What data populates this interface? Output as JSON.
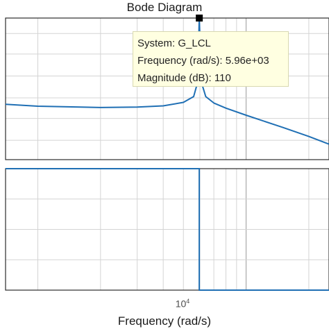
{
  "chart_data": [
    {
      "type": "line",
      "panel": "magnitude",
      "title": "Bode Diagram",
      "xscale": "log",
      "xlim": [
        700,
        25000
      ],
      "ylim": [
        0,
        110
      ],
      "ylabel": "",
      "grid": true,
      "line_color": "#1f6fb4",
      "series": [
        {
          "x": [
            700,
            1000,
            2000,
            3000,
            4000,
            5000,
            5600,
            5850,
            5960,
            6100,
            6400,
            7000,
            8000,
            10000,
            15000,
            20000,
            25000
          ],
          "y": [
            43,
            41.5,
            40.5,
            40.8,
            41.8,
            44.5,
            49,
            60,
            110,
            60,
            49,
            44,
            40,
            34.5,
            25,
            18,
            12
          ]
        }
      ],
      "x_ticks": [
        1000,
        2000,
        3000,
        4000,
        5000,
        6000,
        7000,
        8000,
        9000,
        10000,
        20000
      ],
      "y_gridlines": [
        15,
        32,
        48,
        65,
        82,
        98
      ],
      "x_major_tick_label": {
        "value": 10000,
        "base": "10",
        "exp": "4"
      },
      "annotation": {
        "marker_x": 5960,
        "marker_y": 110,
        "lines": [
          "System: G_LCL",
          "Frequency (rad/s): 5.96e+03",
          "Magnitude (dB): 110"
        ]
      }
    },
    {
      "type": "line",
      "panel": "phase",
      "xscale": "log",
      "xlim": [
        700,
        25000
      ],
      "ylim": [
        -180,
        0
      ],
      "ylabel": "",
      "xlabel": "Frequency  (rad/s)",
      "grid": true,
      "line_color": "#1f6fb4",
      "series": [
        {
          "x": [
            700,
            5960,
            5960,
            25000
          ],
          "y": [
            0,
            0,
            -180,
            -180
          ]
        }
      ],
      "y_gridlines": [
        -45,
        -90,
        -135
      ]
    }
  ],
  "colors": {
    "axis": "#2b2b2b",
    "grid": "#d4d4d4",
    "major_grid": "#9a9a9a",
    "line": "#1f6fb4",
    "marker": "#000000",
    "tooltip_bg": "#ffffe1"
  }
}
